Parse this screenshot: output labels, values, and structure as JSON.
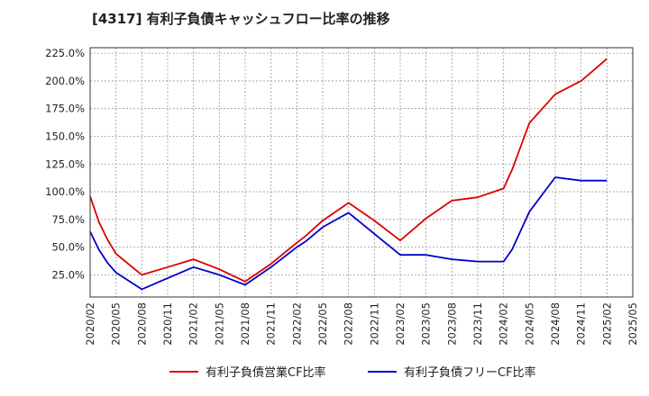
{
  "chart_data": {
    "type": "line",
    "title": "[4317]  有利子負債キャッシュフロー比率の推移",
    "xlabel": "",
    "ylabel": "",
    "x_ticks": [
      "2020/02",
      "2020/05",
      "2020/08",
      "2020/11",
      "2021/02",
      "2021/05",
      "2021/08",
      "2021/11",
      "2022/02",
      "2022/05",
      "2022/08",
      "2022/11",
      "2023/02",
      "2023/05",
      "2023/08",
      "2023/11",
      "2024/02",
      "2024/05",
      "2024/08",
      "2024/11",
      "2025/02",
      "2025/05"
    ],
    "y_ticks": [
      "25.0%",
      "50.0%",
      "75.0%",
      "100.0%",
      "125.0%",
      "150.0%",
      "175.0%",
      "200.0%",
      "225.0%"
    ],
    "ylim": [
      5,
      230
    ],
    "grid": true,
    "legend_position": "bottom",
    "series": [
      {
        "name": "有利子負債営業CF比率",
        "color": "#dd0000",
        "x": [
          "2020/02",
          "2020/03",
          "2020/04",
          "2020/05",
          "2020/08",
          "2020/11",
          "2021/02",
          "2021/05",
          "2021/08",
          "2021/11",
          "2022/02",
          "2022/03",
          "2022/05",
          "2022/08",
          "2022/11",
          "2023/02",
          "2023/05",
          "2023/08",
          "2023/11",
          "2024/02",
          "2024/03",
          "2024/05",
          "2024/08",
          "2024/11",
          "2025/02"
        ],
        "values": [
          96,
          73,
          57,
          44,
          25,
          32,
          39,
          30,
          19,
          35,
          54,
          60,
          74,
          90,
          74,
          56,
          76,
          92,
          95,
          103,
          120,
          162,
          188,
          200,
          220
        ]
      },
      {
        "name": "有利子負債フリーCF比率",
        "color": "#0000cc",
        "x": [
          "2020/02",
          "2020/03",
          "2020/04",
          "2020/05",
          "2020/08",
          "2020/11",
          "2021/02",
          "2021/05",
          "2021/08",
          "2021/11",
          "2022/02",
          "2022/03",
          "2022/05",
          "2022/08",
          "2022/11",
          "2023/02",
          "2023/05",
          "2023/08",
          "2023/11",
          "2024/02",
          "2024/03",
          "2024/05",
          "2024/08",
          "2024/11",
          "2025/02"
        ],
        "values": [
          64,
          48,
          36,
          27,
          12,
          22,
          32,
          25,
          16,
          32,
          50,
          55,
          68,
          81,
          62,
          43,
          43,
          39,
          37,
          37,
          48,
          82,
          113,
          110,
          110
        ]
      }
    ]
  }
}
